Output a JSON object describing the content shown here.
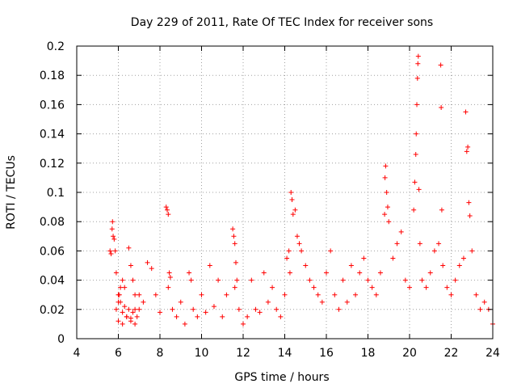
{
  "chart_data": {
    "type": "scatter",
    "title": "Day 229 of 2011, Rate Of TEC Index for receiver sons",
    "xlabel": "GPS time / hours",
    "ylabel": "ROTI / TECUs",
    "xlim": [
      4,
      24
    ],
    "ylim": [
      0,
      0.2
    ],
    "xticks": [
      4,
      6,
      8,
      10,
      12,
      14,
      16,
      18,
      20,
      22,
      24
    ],
    "yticks": [
      0,
      0.02,
      0.04,
      0.06,
      0.08,
      0.1,
      0.12,
      0.14,
      0.16,
      0.18,
      0.2
    ],
    "grid": true,
    "marker": "+",
    "marker_color": "#ff0000",
    "series": [
      {
        "name": "ROTI",
        "x": [
          5.6,
          5.65,
          5.7,
          5.72,
          5.75,
          5.8,
          5.85,
          5.9,
          6.0,
          6.1,
          6.2,
          6.3,
          6.5,
          6.6,
          6.7,
          6.8,
          5.9,
          6.0,
          6.05,
          6.1,
          6.2,
          6.3,
          6.4,
          6.5,
          6.6,
          6.7,
          6.8,
          6.9,
          7.0,
          6.0,
          6.2,
          6.4,
          6.6,
          6.8,
          7.0,
          7.2,
          7.4,
          7.6,
          7.8,
          8.0,
          8.3,
          8.35,
          8.4,
          8.45,
          8.5,
          8.4,
          8.6,
          8.8,
          9.0,
          9.2,
          9.4,
          9.5,
          9.6,
          9.8,
          10.0,
          10.2,
          10.4,
          10.6,
          10.8,
          11.0,
          11.2,
          11.5,
          11.55,
          11.6,
          11.65,
          11.7,
          11.6,
          11.8,
          12.0,
          12.2,
          12.4,
          12.6,
          12.8,
          13.0,
          13.2,
          13.4,
          13.6,
          13.8,
          14.0,
          14.1,
          14.2,
          14.25,
          14.3,
          14.35,
          14.4,
          14.5,
          14.6,
          14.7,
          14.8,
          15.0,
          15.2,
          15.4,
          15.6,
          15.8,
          16.0,
          16.2,
          16.4,
          16.6,
          16.8,
          17.0,
          17.2,
          17.4,
          17.6,
          17.8,
          18.0,
          18.2,
          18.4,
          18.6,
          18.8,
          18.82,
          18.85,
          18.9,
          18.95,
          19.0,
          19.2,
          19.4,
          19.6,
          19.8,
          20.0,
          20.2,
          20.25,
          20.3,
          20.32,
          20.35,
          20.38,
          20.4,
          20.42,
          20.45,
          20.5,
          20.6,
          20.8,
          21.0,
          21.2,
          21.4,
          21.5,
          21.52,
          21.55,
          21.6,
          21.8,
          22.0,
          22.2,
          22.4,
          22.6,
          22.7,
          22.75,
          22.8,
          22.85,
          22.9,
          23.0,
          23.2,
          23.4,
          23.6,
          23.8,
          24.0
        ],
        "y": [
          0.06,
          0.058,
          0.075,
          0.08,
          0.07,
          0.068,
          0.06,
          0.045,
          0.03,
          0.025,
          0.04,
          0.035,
          0.062,
          0.05,
          0.04,
          0.03,
          0.02,
          0.025,
          0.03,
          0.035,
          0.018,
          0.022,
          0.015,
          0.02,
          0.012,
          0.018,
          0.01,
          0.015,
          0.02,
          0.012,
          0.01,
          0.015,
          0.014,
          0.02,
          0.03,
          0.025,
          0.052,
          0.048,
          0.03,
          0.018,
          0.09,
          0.088,
          0.085,
          0.045,
          0.042,
          0.035,
          0.02,
          0.015,
          0.025,
          0.01,
          0.045,
          0.04,
          0.02,
          0.015,
          0.03,
          0.018,
          0.05,
          0.022,
          0.04,
          0.015,
          0.03,
          0.075,
          0.07,
          0.065,
          0.052,
          0.04,
          0.035,
          0.02,
          0.01,
          0.015,
          0.04,
          0.02,
          0.018,
          0.045,
          0.025,
          0.035,
          0.02,
          0.015,
          0.03,
          0.055,
          0.06,
          0.045,
          0.1,
          0.095,
          0.085,
          0.088,
          0.07,
          0.065,
          0.06,
          0.05,
          0.04,
          0.035,
          0.03,
          0.025,
          0.045,
          0.06,
          0.03,
          0.02,
          0.04,
          0.025,
          0.05,
          0.03,
          0.045,
          0.055,
          0.04,
          0.035,
          0.03,
          0.045,
          0.085,
          0.11,
          0.118,
          0.1,
          0.09,
          0.08,
          0.055,
          0.065,
          0.073,
          0.04,
          0.035,
          0.088,
          0.107,
          0.126,
          0.14,
          0.16,
          0.178,
          0.188,
          0.193,
          0.102,
          0.065,
          0.04,
          0.035,
          0.045,
          0.06,
          0.065,
          0.187,
          0.158,
          0.088,
          0.05,
          0.035,
          0.03,
          0.04,
          0.05,
          0.055,
          0.155,
          0.128,
          0.131,
          0.093,
          0.084,
          0.06,
          0.03,
          0.02,
          0.025,
          0.02,
          0.01
        ]
      }
    ]
  }
}
